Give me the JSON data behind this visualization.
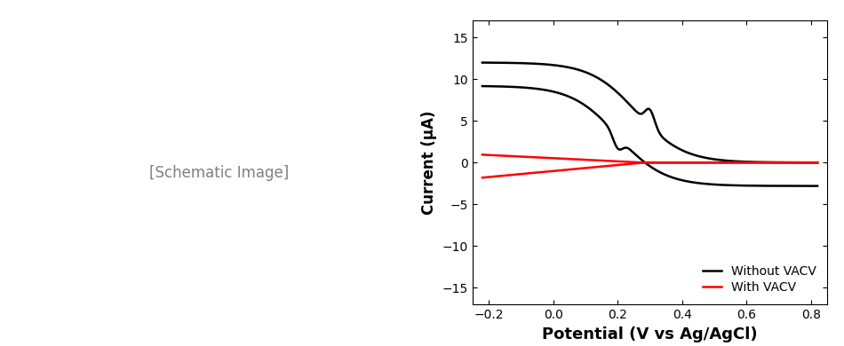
{
  "title": "",
  "xlabel": "Potential (V vs Ag/AgCl)",
  "ylabel": "Current (μA)",
  "xlim": [
    -0.25,
    0.85
  ],
  "ylim": [
    -17,
    17
  ],
  "yticks": [
    -15,
    -10,
    -5,
    0,
    5,
    10,
    15
  ],
  "xticks": [
    -0.2,
    0.0,
    0.2,
    0.4,
    0.6,
    0.8
  ],
  "legend": [
    "Without VACV",
    "With VACV"
  ],
  "legend_colors": [
    "black",
    "red"
  ],
  "background_color": "#ffffff",
  "figsize": [
    9.5,
    3.9
  ],
  "dpi": 100
}
